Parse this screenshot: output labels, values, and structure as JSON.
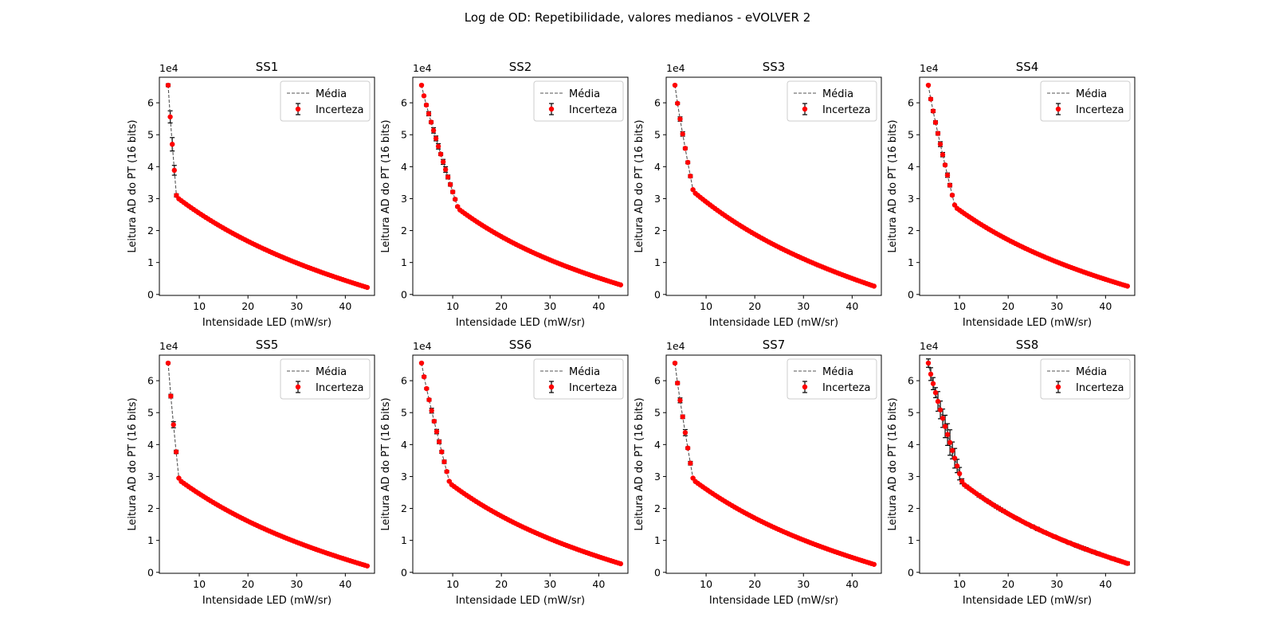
{
  "figure": {
    "title": "Log de OD: Repetibilidade, valores medianos - eVOLVER 2"
  },
  "chart_data": [
    {
      "type": "scatter",
      "title": "SS1",
      "xlabel": "Intensidade LED (mW/sr)",
      "ylabel": "Leitura AD do PT (16 bits)",
      "y_offset": "1e4",
      "xlim": [
        1.8,
        46
      ],
      "ylim": [
        -300,
        68000
      ],
      "x_ticks": [
        10,
        20,
        30,
        40
      ],
      "y_ticks": [
        0,
        10000,
        20000,
        30000,
        40000,
        50000,
        60000
      ],
      "legend": {
        "position": "top-right",
        "entries": [
          "Média",
          "Incerteza"
        ]
      },
      "knee_x": 5.3,
      "knee_y": 30500,
      "tail_y": 2200,
      "err_scale": 1.0
    },
    {
      "type": "scatter",
      "title": "SS2",
      "xlabel": "Intensidade LED (mW/sr)",
      "ylabel": "Leitura AD do PT (16 bits)",
      "y_offset": "1e4",
      "xlim": [
        1.8,
        46
      ],
      "ylim": [
        -300,
        68000
      ],
      "x_ticks": [
        10,
        20,
        30,
        40
      ],
      "y_ticks": [
        0,
        10000,
        20000,
        30000,
        40000,
        50000,
        60000
      ],
      "legend": {
        "position": "top-right",
        "entries": [
          "Média",
          "Incerteza"
        ]
      },
      "knee_x": 11.0,
      "knee_y": 27000,
      "tail_y": 3000,
      "err_scale": 0.35
    },
    {
      "type": "scatter",
      "title": "SS3",
      "xlabel": "Intensidade LED (mW/sr)",
      "ylabel": "Leitura AD do PT (16 bits)",
      "y_offset": "1e4",
      "xlim": [
        1.8,
        46
      ],
      "ylim": [
        -300,
        68000
      ],
      "x_ticks": [
        10,
        20,
        30,
        40
      ],
      "y_ticks": [
        0,
        10000,
        20000,
        30000,
        40000,
        50000,
        60000
      ],
      "legend": {
        "position": "top-right",
        "entries": [
          "Média",
          "Incerteza"
        ]
      },
      "knee_x": 7.3,
      "knee_y": 32300,
      "tail_y": 2600,
      "err_scale": 0.3
    },
    {
      "type": "scatter",
      "title": "SS4",
      "xlabel": "Intensidade LED (mW/sr)",
      "ylabel": "Leitura AD do PT (16 bits)",
      "y_offset": "1e4",
      "xlim": [
        1.8,
        46
      ],
      "ylim": [
        -300,
        68000
      ],
      "x_ticks": [
        10,
        20,
        30,
        40
      ],
      "y_ticks": [
        0,
        10000,
        20000,
        30000,
        40000,
        50000,
        60000
      ],
      "legend": {
        "position": "top-right",
        "entries": [
          "Média",
          "Incerteza"
        ]
      },
      "knee_x": 9.0,
      "knee_y": 27500,
      "tail_y": 2600,
      "err_scale": 0.3
    },
    {
      "type": "scatter",
      "title": "SS5",
      "xlabel": "Intensidade LED (mW/sr)",
      "ylabel": "Leitura AD do PT (16 bits)",
      "y_offset": "1e4",
      "xlim": [
        1.8,
        46
      ],
      "ylim": [
        -300,
        68000
      ],
      "x_ticks": [
        10,
        20,
        30,
        40
      ],
      "y_ticks": [
        0,
        10000,
        20000,
        30000,
        40000,
        50000,
        60000
      ],
      "legend": {
        "position": "top-right",
        "entries": [
          "Média",
          "Incerteza"
        ]
      },
      "knee_x": 5.8,
      "knee_y": 29000,
      "tail_y": 2000,
      "err_scale": 0.4
    },
    {
      "type": "scatter",
      "title": "SS6",
      "xlabel": "Intensidade LED (mW/sr)",
      "ylabel": "Leitura AD do PT (16 bits)",
      "y_offset": "1e4",
      "xlim": [
        1.8,
        46
      ],
      "ylim": [
        -300,
        68000
      ],
      "x_ticks": [
        10,
        20,
        30,
        40
      ],
      "y_ticks": [
        0,
        10000,
        20000,
        30000,
        40000,
        50000,
        60000
      ],
      "legend": {
        "position": "top-right",
        "entries": [
          "Média",
          "Incerteza"
        ]
      },
      "knee_x": 9.3,
      "knee_y": 28000,
      "tail_y": 2700,
      "err_scale": 0.3
    },
    {
      "type": "scatter",
      "title": "SS7",
      "xlabel": "Intensidade LED (mW/sr)",
      "ylabel": "Leitura AD do PT (16 bits)",
      "y_offset": "1e4",
      "xlim": [
        1.8,
        46
      ],
      "ylim": [
        -300,
        68000
      ],
      "x_ticks": [
        10,
        20,
        30,
        40
      ],
      "y_ticks": [
        0,
        10000,
        20000,
        30000,
        40000,
        50000,
        60000
      ],
      "legend": {
        "position": "top-right",
        "entries": [
          "Média",
          "Incerteza"
        ]
      },
      "knee_x": 7.3,
      "knee_y": 29000,
      "tail_y": 2500,
      "err_scale": 0.35
    },
    {
      "type": "scatter",
      "title": "SS8",
      "xlabel": "Intensidade LED (mW/sr)",
      "ylabel": "Leitura AD do PT (16 bits)",
      "y_offset": "1e4",
      "xlim": [
        1.8,
        46
      ],
      "ylim": [
        -300,
        68000
      ],
      "x_ticks": [
        10,
        20,
        30,
        40
      ],
      "y_ticks": [
        0,
        10000,
        20000,
        30000,
        40000,
        50000,
        60000
      ],
      "legend": {
        "position": "top-right",
        "entries": [
          "Média",
          "Incerteza"
        ]
      },
      "knee_x": 10.5,
      "knee_y": 28000,
      "tail_y": 2800,
      "err_scale": 1.6
    }
  ]
}
